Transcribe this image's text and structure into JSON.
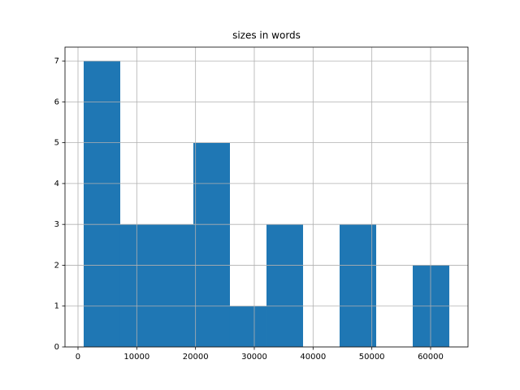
{
  "chart_data": {
    "type": "histogram",
    "title": "sizes in words",
    "bins": [
      968,
      7189,
      13410,
      19632,
      25853,
      32074,
      38295,
      44516,
      50738,
      56959,
      63180
    ],
    "values": [
      7,
      3,
      3,
      5,
      1,
      3,
      0,
      3,
      0,
      2
    ],
    "color": "#1f77b4",
    "xlim": [
      -2212,
      66362
    ],
    "xticks": [
      0,
      10000,
      20000,
      30000,
      40000,
      50000,
      60000
    ],
    "ylim": [
      0,
      7.34
    ],
    "yticks": [
      0,
      1,
      2,
      3,
      4,
      5,
      6,
      7
    ],
    "grid": true
  }
}
